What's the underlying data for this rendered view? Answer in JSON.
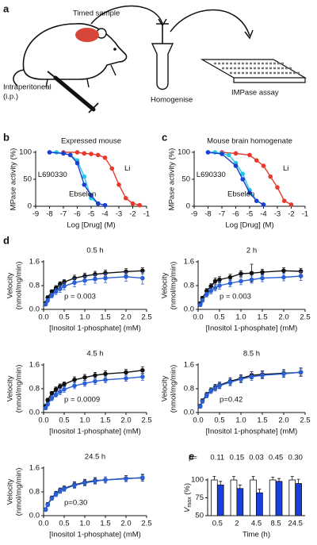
{
  "diagram": {
    "panel": "a",
    "sample_label": "Timed sample",
    "injection_label": [
      "Intraperitoneal",
      "(i.p.)"
    ],
    "homogenise_label": "Homogenise",
    "assay_label": "IMPase assay"
  },
  "chart_data": [
    {
      "type": "line",
      "panel": "b",
      "title": "Expressed mouse",
      "xlabel": "Log [Drug] (M)",
      "ylabel": "MPase activity (%)",
      "xlim": [
        -9,
        -1
      ],
      "xticks": [
        -9,
        -8,
        -7,
        -6,
        -5,
        -4,
        -3,
        -2,
        -1
      ],
      "ylim": [
        0,
        100
      ],
      "yticks": [
        0,
        50,
        100
      ],
      "series": [
        {
          "name": "Li",
          "color": "#e8392a",
          "x": [
            -7,
            -6,
            -5.5,
            -5,
            -4.5,
            -4,
            -3.5,
            -3,
            -2.5,
            -2,
            -1.5
          ],
          "values": [
            100,
            100,
            98,
            97,
            95,
            90,
            70,
            40,
            15,
            5,
            2
          ]
        },
        {
          "name": "L690330",
          "color": "#22c8e8",
          "x": [
            -8,
            -7.5,
            -7,
            -6.5,
            -6,
            -5.5,
            -5,
            -4.5,
            -4
          ],
          "values": [
            100,
            100,
            98,
            95,
            85,
            55,
            15,
            5,
            2
          ]
        },
        {
          "name": "Ebselen",
          "color": "#1c3fcf",
          "x": [
            -8,
            -7,
            -6.5,
            -6,
            -5.5,
            -5,
            -4.5,
            -4
          ],
          "values": [
            100,
            98,
            95,
            80,
            40,
            20,
            5,
            2
          ]
        }
      ]
    },
    {
      "type": "line",
      "panel": "c",
      "title": "Mouse brain homogenate",
      "xlabel": "Log [Drug] (M)",
      "ylabel": "MPase activity (%)",
      "xlim": [
        -9,
        -1
      ],
      "xticks": [
        -9,
        -8,
        -7,
        -6,
        -5,
        -4,
        -3,
        -2,
        -1
      ],
      "ylim": [
        0,
        100
      ],
      "yticks": [
        0,
        50,
        100
      ],
      "series": [
        {
          "name": "Li",
          "color": "#e8392a",
          "x": [
            -7,
            -6,
            -5,
            -4.5,
            -4,
            -3.5,
            -3,
            -2.5,
            -2
          ],
          "values": [
            100,
            98,
            95,
            85,
            75,
            55,
            35,
            10,
            3
          ]
        },
        {
          "name": "L690330",
          "color": "#22c8e8",
          "x": [
            -8,
            -7.5,
            -7,
            -6.5,
            -6,
            -5.5,
            -5,
            -4.5,
            -4
          ],
          "values": [
            100,
            100,
            98,
            95,
            80,
            60,
            30,
            10,
            3
          ]
        },
        {
          "name": "Ebselen",
          "color": "#1c3fcf",
          "x": [
            -8,
            -7,
            -6,
            -5.5,
            -5,
            -4.5,
            -4
          ],
          "values": [
            100,
            97,
            75,
            50,
            25,
            10,
            3
          ]
        }
      ]
    },
    {
      "type": "line",
      "panel": "d",
      "title": "0.5 h",
      "annotation": "p = 0.003",
      "xlabel": "[Inositol 1-phosphate] (mM)",
      "ylabel": [
        "Velocity",
        "(nmol/mg/min)"
      ],
      "xlim": [
        0,
        2.5
      ],
      "xticks": [
        {
          "value": 0,
          "label": "0.0"
        },
        0.5,
        {
          "value": 1,
          "label": "1.0"
        },
        1.5,
        {
          "value": 2,
          "label": "2.0"
        },
        2.5
      ],
      "ylim": [
        0,
        1.6
      ],
      "yticks": [
        {
          "value": 0,
          "label": "0.0"
        },
        0.8,
        1.6
      ],
      "x": [
        0.05,
        0.1,
        0.2,
        0.3,
        0.4,
        0.5,
        0.75,
        1,
        1.25,
        1.5,
        2,
        2.4
      ],
      "series": [
        {
          "color": "#111111",
          "values": [
            0.21,
            0.4,
            0.6,
            0.72,
            0.85,
            0.92,
            1.05,
            1.12,
            1.18,
            1.22,
            1.27,
            1.3
          ],
          "errors": [
            0.05,
            0.06,
            0.06,
            0.08,
            0.08,
            0.08,
            0.1,
            0.1,
            0.1,
            0.1,
            0.1,
            0.1
          ]
        },
        {
          "color": "#2a5fd6",
          "values": [
            0.17,
            0.3,
            0.47,
            0.6,
            0.69,
            0.78,
            0.9,
            0.97,
            1.02,
            1.05,
            1.1,
            1.05
          ],
          "errors": [
            0.05,
            0.06,
            0.08,
            0.1,
            0.12,
            0.12,
            0.14,
            0.14,
            0.14,
            0.15,
            0.15,
            0.2
          ]
        }
      ]
    },
    {
      "type": "line",
      "title": "2 h",
      "annotation": "p = 0.003",
      "xlabel": "[Inositol 1-phosphate] (mM)",
      "ylabel": [
        "Velocity",
        "(nmol/mg/min)"
      ],
      "xlim": [
        0,
        2.5
      ],
      "xticks": [
        {
          "value": 0,
          "label": "0.0"
        },
        0.5,
        {
          "value": 1,
          "label": "1.0"
        },
        1.5,
        {
          "value": 2,
          "label": "2.0"
        },
        2.5
      ],
      "ylim": [
        0,
        1.6
      ],
      "yticks": [
        {
          "value": 0,
          "label": "0.0"
        },
        0.8,
        1.6
      ],
      "x": [
        0.05,
        0.1,
        0.2,
        0.3,
        0.4,
        0.5,
        0.75,
        1,
        1.25,
        1.5,
        2,
        2.4
      ],
      "series": [
        {
          "color": "#111111",
          "values": [
            0.2,
            0.38,
            0.62,
            0.78,
            0.95,
            1,
            1.08,
            1.2,
            1.22,
            1.25,
            1.3,
            1.28
          ],
          "errors": [
            0.05,
            0.06,
            0.08,
            0.08,
            0.1,
            0.1,
            0.1,
            0.1,
            0.3,
            0.1,
            0.1,
            0.1
          ]
        },
        {
          "color": "#2a5fd6",
          "values": [
            0.15,
            0.3,
            0.5,
            0.62,
            0.72,
            0.8,
            0.88,
            0.95,
            1,
            1.05,
            1.08,
            1.12
          ],
          "errors": [
            0.05,
            0.06,
            0.08,
            0.1,
            0.1,
            0.12,
            0.12,
            0.12,
            0.12,
            0.12,
            0.12,
            0.15
          ]
        }
      ]
    },
    {
      "type": "line",
      "title": "4.5 h",
      "annotation": "p = 0.0009",
      "xlabel": "[Inositol 1-phosphate] (mM)",
      "ylabel": [
        "Velocity",
        "(nmol/mg/min)"
      ],
      "xlim": [
        0,
        2.5
      ],
      "xticks": [
        {
          "value": 0,
          "label": "0.0"
        },
        0.5,
        {
          "value": 1,
          "label": "1.0"
        },
        1.5,
        {
          "value": 2,
          "label": "2.0"
        },
        2.5
      ],
      "ylim": [
        0,
        1.6
      ],
      "yticks": [
        {
          "value": 0,
          "label": "0.0"
        },
        0.8,
        1.6
      ],
      "x": [
        0.05,
        0.1,
        0.2,
        0.3,
        0.4,
        0.5,
        0.75,
        1,
        1.25,
        1.5,
        2,
        2.4
      ],
      "series": [
        {
          "color": "#111111",
          "values": [
            0.22,
            0.42,
            0.65,
            0.78,
            0.88,
            0.95,
            1.1,
            1.18,
            1.25,
            1.3,
            1.35,
            1.42
          ],
          "errors": [
            0.05,
            0.06,
            0.06,
            0.08,
            0.08,
            0.08,
            0.1,
            0.1,
            0.1,
            0.1,
            0.1,
            0.12
          ]
        },
        {
          "color": "#2a5fd6",
          "values": [
            0.15,
            0.28,
            0.48,
            0.6,
            0.7,
            0.78,
            0.9,
            0.98,
            1.05,
            1.1,
            1.15,
            1.2
          ],
          "errors": [
            0.05,
            0.06,
            0.08,
            0.08,
            0.1,
            0.1,
            0.1,
            0.1,
            0.1,
            0.1,
            0.1,
            0.12
          ]
        }
      ]
    },
    {
      "type": "line",
      "title": "8.5 h",
      "annotation": "p=0.42",
      "xlabel": "[Inositol 1-phosphate] (mM)",
      "ylabel": [
        "Velocity",
        "(nmol/mg/min)"
      ],
      "xlim": [
        0,
        2.5
      ],
      "xticks": [
        {
          "value": 0,
          "label": "0.0"
        },
        0.5,
        {
          "value": 1,
          "label": "1.0"
        },
        1.5,
        {
          "value": 2,
          "label": "2.0"
        },
        2.5
      ],
      "ylim": [
        0,
        1.6
      ],
      "yticks": [
        {
          "value": 0,
          "label": "0.0"
        },
        0.8,
        1.6
      ],
      "x": [
        0.05,
        0.1,
        0.2,
        0.3,
        0.4,
        0.5,
        0.75,
        1,
        1.25,
        1.5,
        2,
        2.4
      ],
      "series": [
        {
          "color": "#111111",
          "values": [
            0.22,
            0.4,
            0.6,
            0.75,
            0.85,
            0.92,
            1.05,
            1.15,
            1.25,
            1.28,
            1.32,
            1.35
          ],
          "errors": [
            0.05,
            0.06,
            0.08,
            0.08,
            0.1,
            0.1,
            0.12,
            0.12,
            0.12,
            0.12,
            0.12,
            0.12
          ]
        },
        {
          "color": "#2a5fd6",
          "values": [
            0.2,
            0.37,
            0.57,
            0.72,
            0.82,
            0.9,
            1.02,
            1.12,
            1.2,
            1.25,
            1.3,
            1.36
          ],
          "errors": [
            0.05,
            0.06,
            0.08,
            0.08,
            0.1,
            0.1,
            0.12,
            0.12,
            0.12,
            0.12,
            0.12,
            0.15
          ]
        }
      ]
    },
    {
      "type": "line",
      "title": "24.5 h",
      "annotation": "p=0.30",
      "xlabel": "[Inositol 1-phosphate] (mM)",
      "ylabel": [
        "Velocity",
        "(nmol/mg/min)"
      ],
      "xlim": [
        0,
        2.5
      ],
      "xticks": [
        {
          "value": 0,
          "label": "0.0"
        },
        0.5,
        {
          "value": 1,
          "label": "1.0"
        },
        1.5,
        {
          "value": 2,
          "label": "2.0"
        },
        2.5
      ],
      "ylim": [
        0,
        1.6
      ],
      "yticks": [
        {
          "value": 0,
          "label": "0.0"
        },
        0.8,
        1.6
      ],
      "x": [
        0.05,
        0.1,
        0.2,
        0.3,
        0.4,
        0.5,
        0.75,
        1,
        1.25,
        1.5,
        2,
        2.4
      ],
      "series": [
        {
          "color": "#111111",
          "values": [
            0.21,
            0.38,
            0.6,
            0.74,
            0.85,
            0.92,
            1.04,
            1.12,
            1.18,
            1.2,
            1.25,
            1.27
          ],
          "errors": [
            0.05,
            0.06,
            0.06,
            0.08,
            0.08,
            0.08,
            0.1,
            0.1,
            0.1,
            0.1,
            0.1,
            0.1
          ]
        },
        {
          "color": "#2a5fd6",
          "values": [
            0.2,
            0.36,
            0.58,
            0.72,
            0.83,
            0.9,
            1.02,
            1.1,
            1.16,
            1.2,
            1.24,
            1.28
          ],
          "errors": [
            0.05,
            0.06,
            0.06,
            0.08,
            0.08,
            0.08,
            0.1,
            0.1,
            0.1,
            0.1,
            0.1,
            0.12
          ]
        }
      ]
    },
    {
      "type": "bar",
      "panel": "e",
      "p_label": "p=",
      "p_values": [
        "0.11",
        "0.15",
        "0.03",
        "0.45",
        "0.30"
      ],
      "xlabel": "Time (h)",
      "ylabel": {
        "symbol": "V",
        "subscript": "max",
        "unit": " (%)"
      },
      "categories": [
        "0.5",
        "2",
        "4.5",
        "8.5",
        "24.5"
      ],
      "ylim": [
        50,
        100
      ],
      "yticks": [
        50,
        75,
        100
      ],
      "series": [
        {
          "color": "#ffffff",
          "values": [
            100,
            100,
            100,
            100,
            100
          ],
          "errors": [
            5,
            5,
            5,
            4,
            5
          ]
        },
        {
          "color": "#1a3fe0",
          "values": [
            93,
            88,
            82,
            98,
            95
          ],
          "errors": [
            5,
            5,
            5,
            4,
            6
          ]
        }
      ]
    }
  ]
}
